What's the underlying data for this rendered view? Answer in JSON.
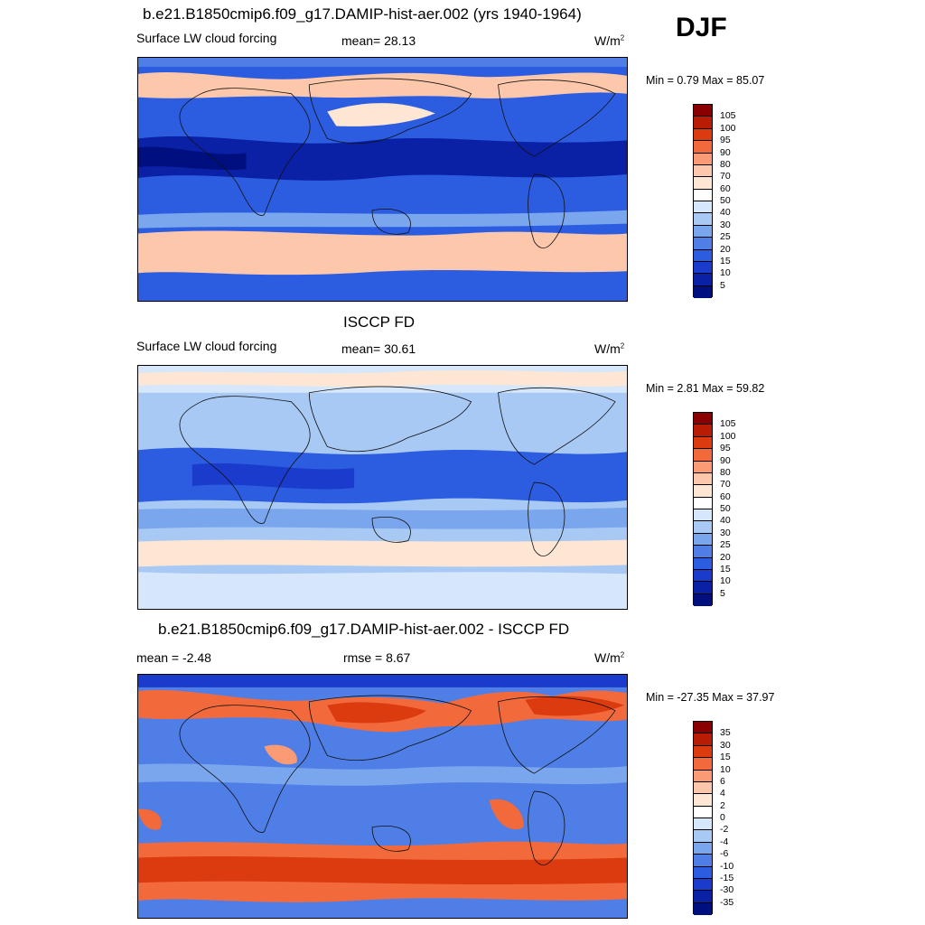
{
  "season": "DJF",
  "panels": [
    {
      "title": "b.e21.B1850cmip6.f09_g17.DAMIP-hist-aer.002 (yrs 1940-1964)",
      "left_label": "Surface LW cloud forcing",
      "center_label": "mean=  28.13",
      "units_base": "W/m",
      "units_exp": "2",
      "minmax": "Min =   0.79 Max =  85.07",
      "colorbar_ticks": [
        "105",
        "100",
        "95",
        "90",
        "80",
        "70",
        "60",
        "50",
        "40",
        "30",
        "25",
        "20",
        "15",
        "10",
        "5"
      ],
      "colorbar_colors": [
        "#8a0000",
        "#b81c05",
        "#dc3a0f",
        "#f26a3c",
        "#fb9b76",
        "#fcc7aa",
        "#fee6d4",
        "#ffffff",
        "#d6e6fb",
        "#a9c9f5",
        "#7aa6ee",
        "#4f7fe6",
        "#2c5de0",
        "#1a3bcb",
        "#0a21a6",
        "#000f7e"
      ]
    },
    {
      "title": "ISCCP FD",
      "left_label": "Surface LW cloud forcing",
      "center_label": "mean=  30.61",
      "units_base": "W/m",
      "units_exp": "2",
      "minmax": "Min =   2.81 Max =  59.82",
      "colorbar_ticks": [
        "105",
        "100",
        "95",
        "90",
        "80",
        "70",
        "60",
        "50",
        "40",
        "30",
        "25",
        "20",
        "15",
        "10",
        "5"
      ],
      "colorbar_colors": [
        "#8a0000",
        "#b81c05",
        "#dc3a0f",
        "#f26a3c",
        "#fb9b76",
        "#fcc7aa",
        "#fee6d4",
        "#ffffff",
        "#d6e6fb",
        "#a9c9f5",
        "#7aa6ee",
        "#4f7fe6",
        "#2c5de0",
        "#1a3bcb",
        "#0a21a6",
        "#000f7e"
      ]
    },
    {
      "title": "b.e21.B1850cmip6.f09_g17.DAMIP-hist-aer.002 - ISCCP FD",
      "left_label": "mean =  -2.48",
      "center_label": "rmse =   8.67",
      "units_base": "W/m",
      "units_exp": "2",
      "minmax": "Min = -27.35 Max =  37.97",
      "colorbar_ticks": [
        "35",
        "30",
        "15",
        "10",
        "6",
        "4",
        "2",
        "0",
        "-2",
        "-4",
        "-6",
        "-10",
        "-15",
        "-30",
        "-35"
      ],
      "colorbar_colors": [
        "#8a0000",
        "#b81c05",
        "#dc3a0f",
        "#f26a3c",
        "#fb9b76",
        "#fcc7aa",
        "#fee6d4",
        "#ffffff",
        "#d6e6fb",
        "#a9c9f5",
        "#7aa6ee",
        "#4f7fe6",
        "#2c5de0",
        "#1a3bcb",
        "#0a21a6",
        "#000f7e"
      ]
    }
  ],
  "chart_data": [
    {
      "type": "heatmap",
      "title": "b.e21.B1850cmip6.f09_g17.DAMIP-hist-aer.002 (yrs 1940-1964)",
      "variable": "Surface LW cloud forcing",
      "units": "W/m2",
      "mean": 28.13,
      "min": 0.79,
      "max": 85.07,
      "contour_levels": [
        5,
        10,
        15,
        20,
        25,
        30,
        40,
        50,
        60,
        70,
        80,
        90,
        95,
        100,
        105
      ]
    },
    {
      "type": "heatmap",
      "title": "ISCCP FD",
      "variable": "Surface LW cloud forcing",
      "units": "W/m2",
      "mean": 30.61,
      "min": 2.81,
      "max": 59.82,
      "contour_levels": [
        5,
        10,
        15,
        20,
        25,
        30,
        40,
        50,
        60,
        70,
        80,
        90,
        95,
        100,
        105
      ]
    },
    {
      "type": "heatmap",
      "title": "b.e21.B1850cmip6.f09_g17.DAMIP-hist-aer.002 - ISCCP FD",
      "units": "W/m2",
      "mean": -2.48,
      "rmse": 8.67,
      "min": -27.35,
      "max": 37.97,
      "contour_levels": [
        -35,
        -30,
        -15,
        -10,
        -6,
        -4,
        -2,
        0,
        2,
        4,
        6,
        10,
        15,
        30,
        35
      ]
    }
  ]
}
